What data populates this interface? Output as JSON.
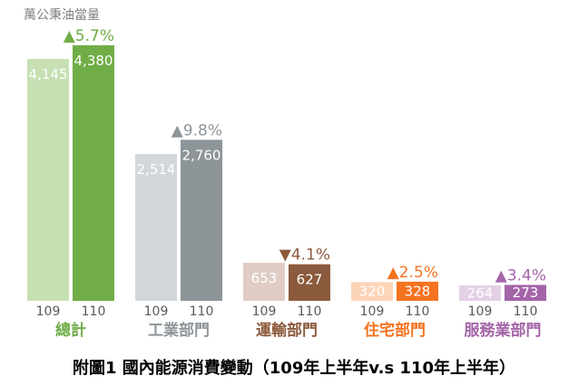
{
  "chart_data": {
    "type": "bar",
    "title": "附圖1 國內能源消費變動（109年上半年v.s 110年上半年）",
    "ylabel": "萬公秉油當量",
    "grid": false,
    "legend": "none",
    "years": [
      "109",
      "110"
    ],
    "categories": [
      {
        "name": "總計",
        "values": [
          4145,
          4380
        ],
        "value_labels": [
          "4,145",
          "4,380"
        ],
        "change": "▲5.7%",
        "colors": [
          "#c6e0b4",
          "#70ad47"
        ]
      },
      {
        "name": "工業部門",
        "values": [
          2514,
          2760
        ],
        "value_labels": [
          "2,514",
          "2,760"
        ],
        "change": "▲9.8%",
        "colors": [
          "#d4d7d9",
          "#8e9599"
        ]
      },
      {
        "name": "運輸部門",
        "values": [
          653,
          627
        ],
        "value_labels": [
          "653",
          "627"
        ],
        "change": "▼4.1%",
        "colors": [
          "#dfcdc5",
          "#8c5a3c"
        ]
      },
      {
        "name": "住宅部門",
        "values": [
          320,
          328
        ],
        "value_labels": [
          "320",
          "328"
        ],
        "change": "▲2.5%",
        "colors": [
          "#fcd5b8",
          "#f47321"
        ]
      },
      {
        "name": "服務業部門",
        "values": [
          264,
          273
        ],
        "value_labels": [
          "264",
          "273"
        ],
        "change": "▲3.4%",
        "colors": [
          "#e4d0e6",
          "#a464a8"
        ]
      }
    ]
  }
}
